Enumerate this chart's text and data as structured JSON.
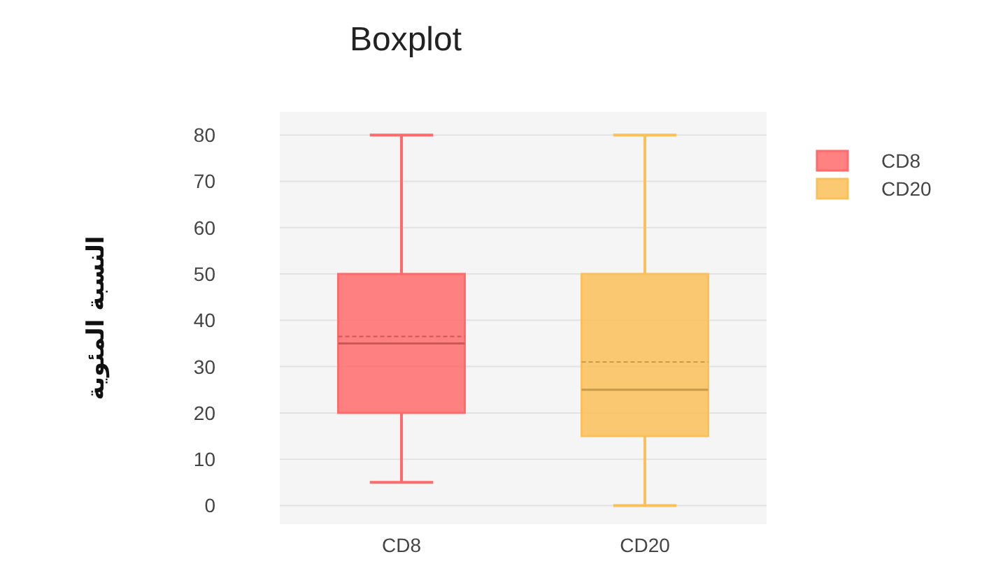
{
  "chart_data": {
    "type": "box",
    "title": "Boxplot",
    "ylabel": "النسبة المئوية",
    "categories": [
      "CD8",
      "CD20"
    ],
    "series": [
      {
        "name": "CD8",
        "color": "#ff6b6b",
        "boxes": [
          {
            "low": 5,
            "q1": 20,
            "median": 35,
            "q3": 50,
            "high": 80,
            "mean": 36.5
          },
          null
        ]
      },
      {
        "name": "CD20",
        "color": "#fbc05a",
        "boxes": [
          null,
          {
            "low": 0,
            "q1": 15,
            "median": 25,
            "q3": 50,
            "high": 80,
            "mean": 31
          }
        ]
      }
    ],
    "ylim": [
      -4,
      85
    ],
    "yticks": [
      0,
      10,
      20,
      30,
      40,
      50,
      60,
      70,
      80
    ],
    "grid": "y",
    "legend": "right"
  }
}
